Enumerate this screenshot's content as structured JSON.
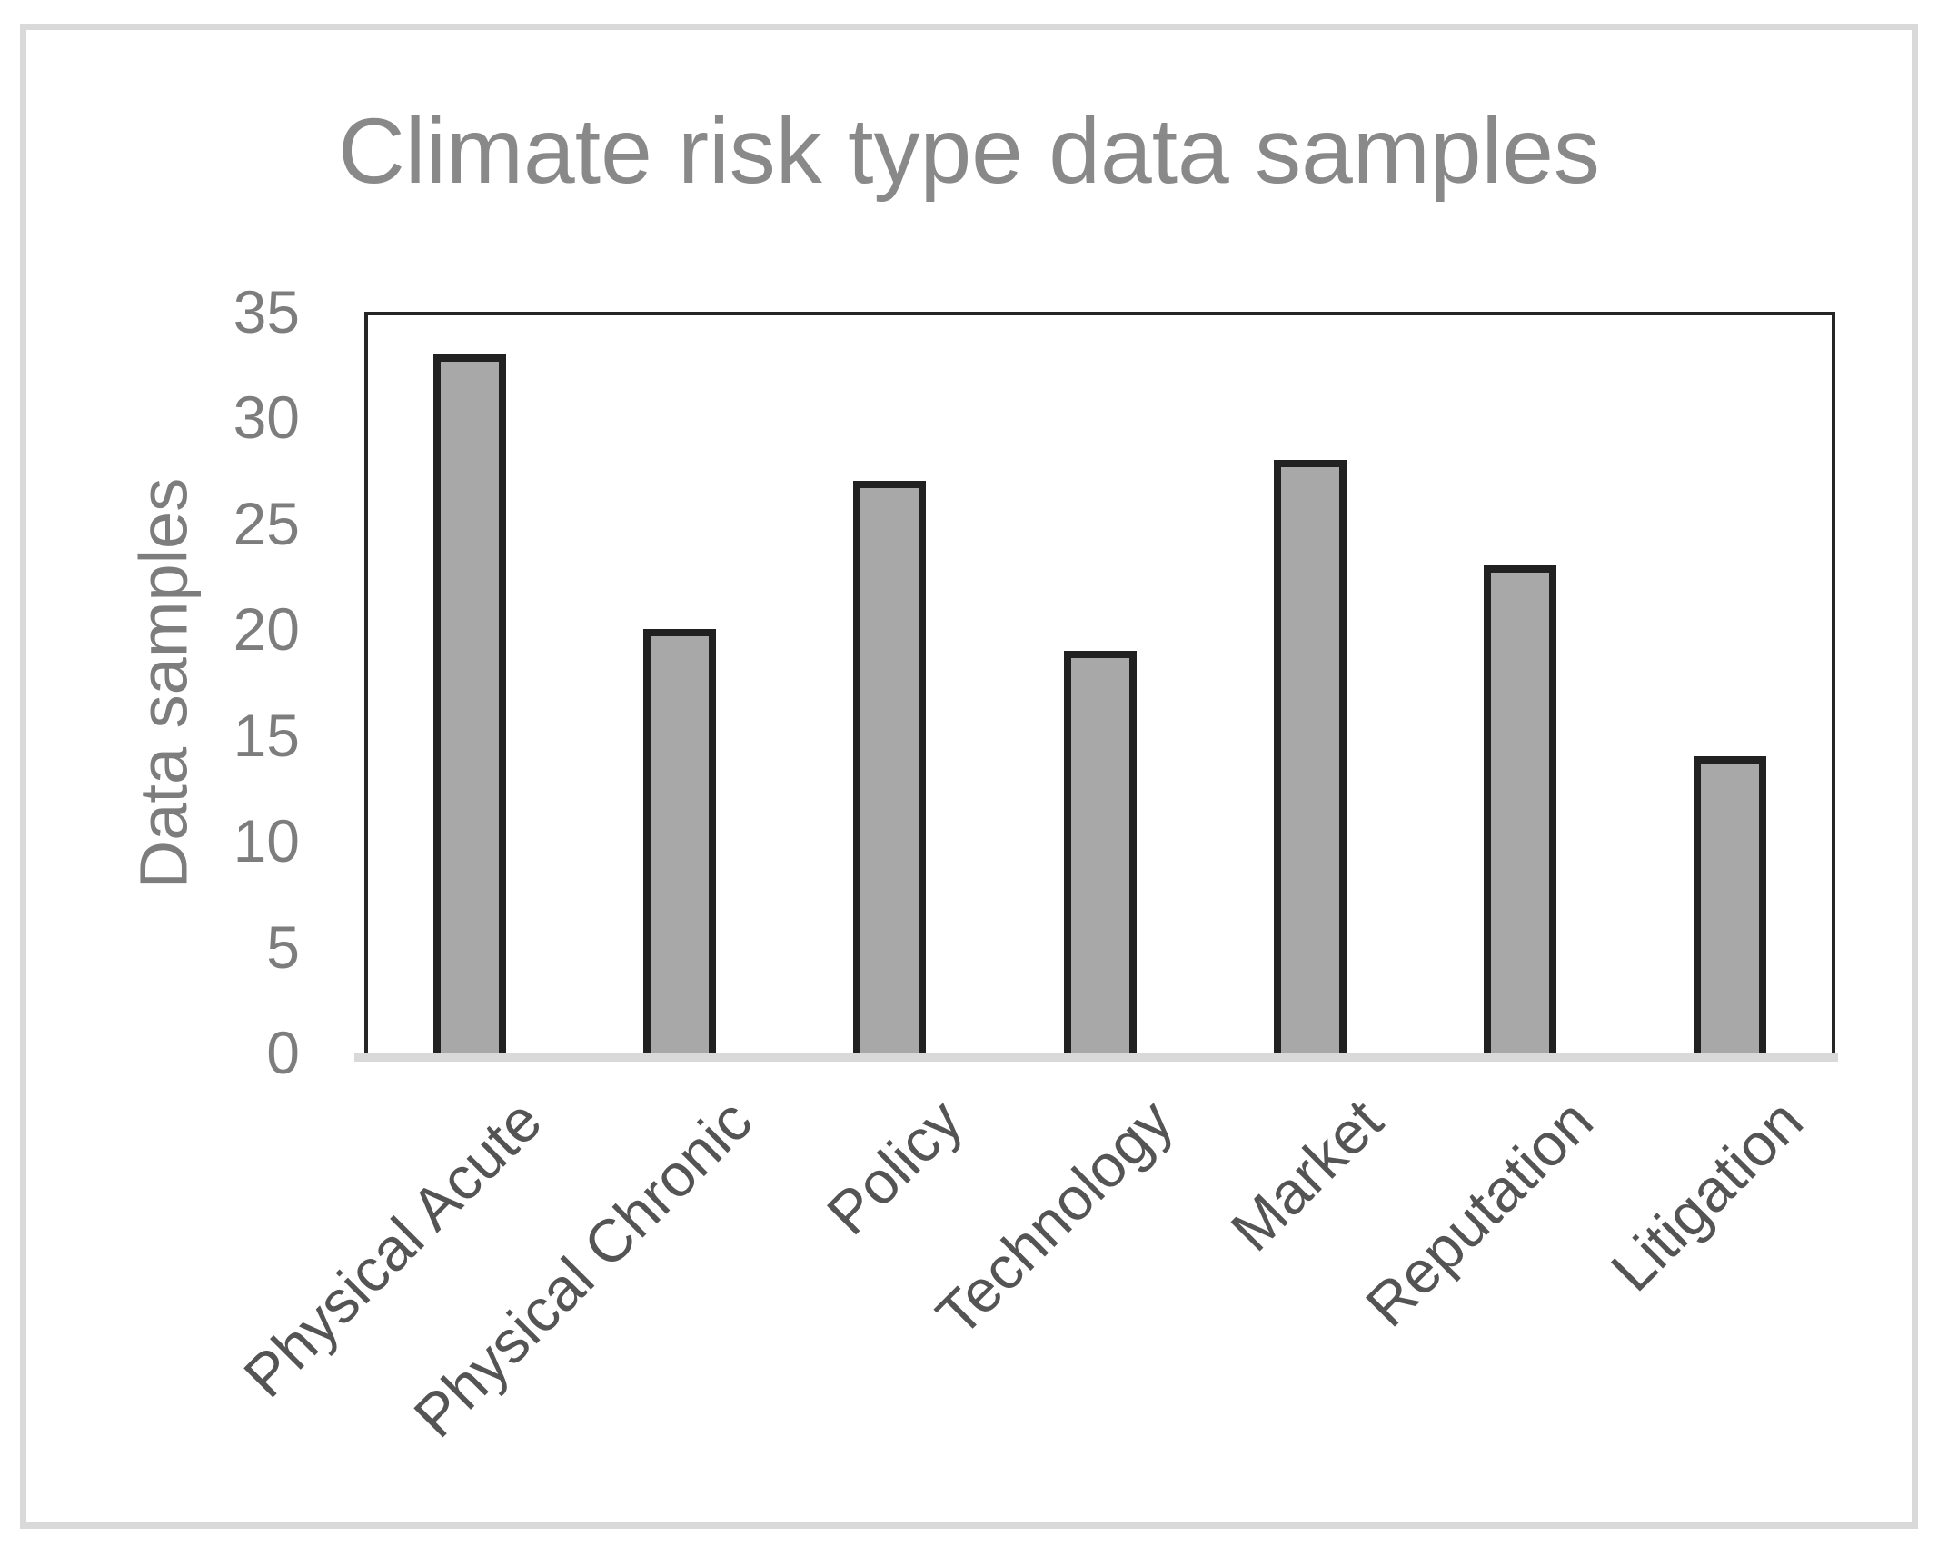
{
  "figure": {
    "background": "#ffffff",
    "border_color": "#d9d9d9"
  },
  "chart_data": {
    "type": "bar",
    "title": "Climate risk type data samples",
    "categories": [
      "Physical Acute",
      "Physical Chronic",
      "Policy",
      "Technology",
      "Market",
      "Reputation",
      "Litigation"
    ],
    "values": [
      33,
      20,
      27,
      19,
      28,
      23,
      14
    ],
    "xlabel": "",
    "ylabel": "Data samples",
    "ylim": [
      0,
      35
    ],
    "yticks": [
      0,
      5,
      10,
      15,
      20,
      25,
      30,
      35
    ],
    "grid": false,
    "legend_position": "none",
    "bar_fill_color": "#a8a8a8",
    "bar_stroke_color": "#212121",
    "title_color": "#898989",
    "y_tick_color": "#7d7d7d",
    "category_label_color": "#545454",
    "baseline_color": "#d9d9d9",
    "plot_border_color": "#262626"
  }
}
